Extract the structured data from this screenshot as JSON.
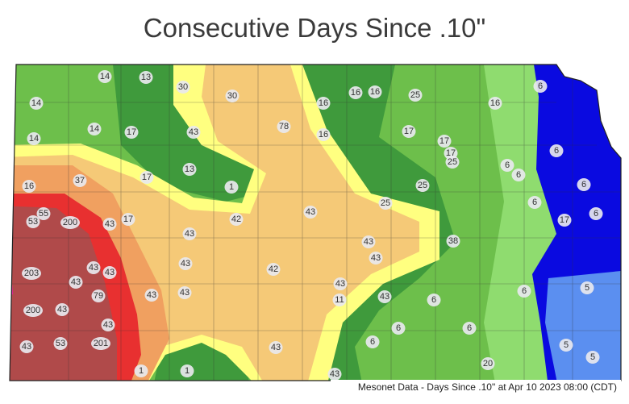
{
  "title": "Consecutive Days Since .10\"",
  "station_values": [
    14,
    13,
    30,
    14,
    30,
    16,
    16,
    16,
    25,
    6,
    16,
    14,
    17,
    43,
    78,
    16,
    17,
    17,
    17,
    25,
    14,
    6,
    6,
    6,
    17,
    13,
    16,
    37,
    1,
    25,
    6,
    55,
    53,
    200,
    43,
    17,
    42,
    43,
    25,
    6,
    17,
    6,
    43,
    43,
    38,
    43,
    43,
    43,
    203,
    43,
    42,
    43,
    43,
    79,
    43,
    43,
    11,
    43,
    6,
    6,
    5,
    200,
    43,
    43,
    6,
    6,
    43,
    53,
    201,
    43,
    6,
    5,
    5,
    1,
    1,
    43,
    20
  ],
  "footer": "Mesonet Data - Days Since .10\" at Apr 10 2023 08:00 (CDT)"
}
